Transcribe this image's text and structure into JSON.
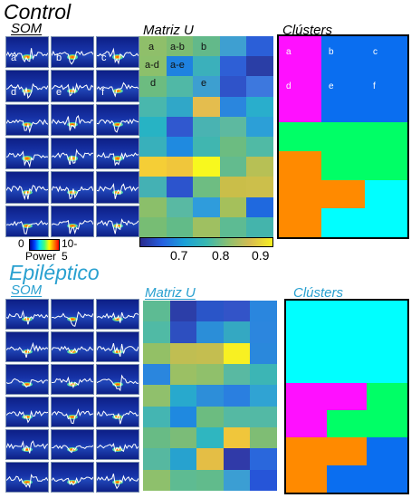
{
  "control": {
    "title": "Control",
    "som_title": "SOM",
    "umatrix_title": "Matriz U",
    "clusters_title": "Clústers",
    "som_labels": [
      "a",
      "b",
      "c",
      "d",
      "e",
      "f"
    ],
    "umatrix_labels": [
      "a",
      "a-b",
      "b",
      "a-d",
      "a-e",
      "d",
      "e"
    ],
    "cluster_labels": [
      "a",
      "b",
      "c",
      "d",
      "e",
      "f"
    ],
    "umatrix_colors": [
      [
        "#8fbf6a",
        "#7cbc73",
        "#63b98a",
        "#3e9fd1",
        "#2b5fd8"
      ],
      [
        "#8cc06b",
        "#1f82e0",
        "#3bb0bb",
        "#2e5fd6",
        "#2a3ea6"
      ],
      [
        "#6cbc80",
        "#50b8a6",
        "#3d9fd0",
        "#2f53c9",
        "#3d78de"
      ],
      [
        "#49b7ad",
        "#30a7c8",
        "#e4bd4e",
        "#2a86de",
        "#29aecc"
      ],
      [
        "#27b3c4",
        "#3058cf",
        "#49b3b2",
        "#5db9a0",
        "#2c9fd7"
      ],
      [
        "#38b0bb",
        "#1f8ae0",
        "#40b6b0",
        "#6cbc81",
        "#50baa5"
      ],
      [
        "#f5ce36",
        "#f0c63b",
        "#f8f81e",
        "#63bb8e",
        "#b7c055"
      ],
      [
        "#44b1b4",
        "#2c54cd",
        "#6ebd82",
        "#cabe49",
        "#ccbf4b"
      ],
      [
        "#8bbf6a",
        "#59b9a3",
        "#2f9cdc",
        "#a5c05b",
        "#1f69df"
      ],
      [
        "#77bd74",
        "#62bb88",
        "#9fc061",
        "#5dbb93",
        "#44b4ac"
      ]
    ],
    "cluster_colors": [
      [
        "#ff10ff",
        "#0a6ef0",
        "#0a6ef0"
      ],
      [
        "#ff10ff",
        "#0a6ef0",
        "#0a6ef0"
      ],
      [
        "#ff10ff",
        "#0a6ef0",
        "#0a6ef0"
      ],
      [
        "#00ff66",
        "#00ff66",
        "#00ff66"
      ],
      [
        "#ff8a00",
        "#00ff66",
        "#00ff66"
      ],
      [
        "#ff8a00",
        "#ff8a00",
        "#00ffff"
      ],
      [
        "#ff8a00",
        "#00ffff",
        "#00ffff"
      ]
    ]
  },
  "colorbar": {
    "ticks": [
      "0.7",
      "0.8",
      "0.9"
    ],
    "colors": [
      "#2a2a8e",
      "#2660e0",
      "#1aa0d8",
      "#38b8b0",
      "#8cc070",
      "#d8bc50",
      "#f8f020"
    ]
  },
  "power_legend": {
    "min": "0",
    "max": "10-5",
    "label": "Power",
    "colors": [
      "#000090",
      "#0040ff",
      "#00e0ff",
      "#40ff80",
      "#ffff00",
      "#ff8000",
      "#ff0000"
    ]
  },
  "epileptic": {
    "title": "Epiléptico",
    "som_title": "SOM",
    "umatrix_title": "Matriz U",
    "clusters_title": "Clústers",
    "title_color": "#29a0d0",
    "umatrix_colors": [
      [
        "#5dbb93",
        "#2c3ea8",
        "#2a55c8",
        "#3354c8",
        "#2a86de"
      ],
      [
        "#50baa5",
        "#2d4fc0",
        "#2b8ed8",
        "#34a8c2",
        "#2c86de"
      ],
      [
        "#93c066",
        "#c0be52",
        "#c4be50",
        "#f8f022",
        "#2a88dc"
      ],
      [
        "#2a86de",
        "#9bc064",
        "#90c06b",
        "#59b9a2",
        "#3cb5b5"
      ],
      [
        "#90c06c",
        "#28a9cd",
        "#2d8ed9",
        "#2a7fe0",
        "#30a3d3"
      ],
      [
        "#44b5b2",
        "#1f89e0",
        "#6cbc80",
        "#55b9a3",
        "#53b9a5"
      ],
      [
        "#68bb85",
        "#7bbc78",
        "#2fb6c0",
        "#f0c63b",
        "#7fbd74"
      ],
      [
        "#56b8a0",
        "#27a2cf",
        "#e4be45",
        "#303aa8",
        "#2a67dc"
      ],
      [
        "#8ec06c",
        "#5ebb92",
        "#61bb8c",
        "#3b9ed3",
        "#2655d8"
      ]
    ],
    "cluster_colors": [
      [
        "#00ffff",
        "#00ffff",
        "#00ffff"
      ],
      [
        "#00ffff",
        "#00ffff",
        "#00ffff"
      ],
      [
        "#00ffff",
        "#00ffff",
        "#00ffff"
      ],
      [
        "#ff10ff",
        "#ff10ff",
        "#00ff66"
      ],
      [
        "#ff10ff",
        "#00ff66",
        "#00ff66"
      ],
      [
        "#ff8a00",
        "#ff8a00",
        "#0a6ef0"
      ],
      [
        "#ff8a00",
        "#0a6ef0",
        "#0a6ef0"
      ]
    ]
  }
}
